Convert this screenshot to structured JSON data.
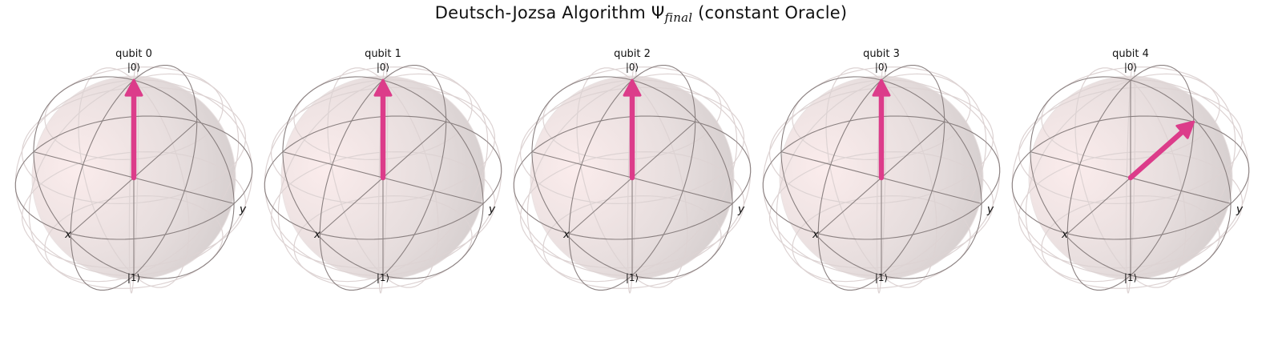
{
  "figure": {
    "title_prefix": "Deutsch-Jozsa Algorithm ",
    "title_symbol": "Ψ",
    "title_subscript": "final",
    "title_suffix": " (constant Oracle)"
  },
  "bloch_spheres": [
    {
      "title": "qubit 0",
      "top_label": "|0⟩",
      "bottom_label": "|1⟩",
      "x_axis_label": "x",
      "y_axis_label": "y",
      "state_vector": {
        "theta_deg": 0,
        "phi_deg": 0
      }
    },
    {
      "title": "qubit 1",
      "top_label": "|0⟩",
      "bottom_label": "|1⟩",
      "x_axis_label": "x",
      "y_axis_label": "y",
      "state_vector": {
        "theta_deg": 0,
        "phi_deg": 0
      }
    },
    {
      "title": "qubit 2",
      "top_label": "|0⟩",
      "bottom_label": "|1⟩",
      "x_axis_label": "x",
      "y_axis_label": "y",
      "state_vector": {
        "theta_deg": 0,
        "phi_deg": 0
      }
    },
    {
      "title": "qubit 3",
      "top_label": "|0⟩",
      "bottom_label": "|1⟩",
      "x_axis_label": "x",
      "y_axis_label": "y",
      "state_vector": {
        "theta_deg": 0,
        "phi_deg": 0
      }
    },
    {
      "title": "qubit 4",
      "top_label": "|0⟩",
      "bottom_label": "|1⟩",
      "x_axis_label": "x",
      "y_axis_label": "y",
      "state_vector": {
        "theta_deg": 90,
        "phi_deg": 180
      }
    }
  ],
  "colors": {
    "state_vector": "#dc3c8a",
    "sphere_fill_light": "#fbecec",
    "sphere_fill_dark": "#cdc7c7",
    "wireframe": "#8a8080",
    "grid": "#ddd3d3"
  }
}
